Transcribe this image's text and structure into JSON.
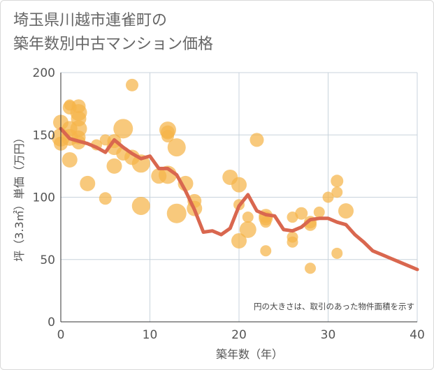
{
  "title_line1": "埼玉県川越市連雀町の",
  "title_line2": "築年数別中古マンション価格",
  "colors": {
    "bubble": "#f5b449",
    "line": "#d9674f",
    "grid": "#c8d3dc",
    "axis": "#333333"
  },
  "chart_data": {
    "type": "scatter",
    "xlabel": "築年数（年）",
    "ylabel": "坪（3.3㎡）単価（万円）",
    "xlim": [
      0,
      40
    ],
    "ylim": [
      0,
      200
    ],
    "xticks": [
      0,
      10,
      20,
      30,
      40
    ],
    "yticks": [
      0,
      50,
      100,
      150,
      200
    ],
    "note": "円の大きさは、取引のあった物件面積を示す",
    "bubbles": [
      {
        "x": 0,
        "y": 160,
        "s": 11
      },
      {
        "x": 0,
        "y": 148,
        "s": 13
      },
      {
        "x": 0,
        "y": 143,
        "s": 10
      },
      {
        "x": 1,
        "y": 172,
        "s": 10
      },
      {
        "x": 1,
        "y": 174,
        "s": 8
      },
      {
        "x": 1,
        "y": 155,
        "s": 11
      },
      {
        "x": 1,
        "y": 148,
        "s": 12
      },
      {
        "x": 1,
        "y": 130,
        "s": 11
      },
      {
        "x": 2,
        "y": 173,
        "s": 10
      },
      {
        "x": 2,
        "y": 168,
        "s": 12
      },
      {
        "x": 2,
        "y": 163,
        "s": 11
      },
      {
        "x": 2,
        "y": 155,
        "s": 12
      },
      {
        "x": 2,
        "y": 148,
        "s": 10
      },
      {
        "x": 2,
        "y": 144,
        "s": 10
      },
      {
        "x": 3,
        "y": 111,
        "s": 11
      },
      {
        "x": 4,
        "y": 142,
        "s": 8
      },
      {
        "x": 5,
        "y": 146,
        "s": 8
      },
      {
        "x": 5,
        "y": 99,
        "s": 9
      },
      {
        "x": 6,
        "y": 145,
        "s": 10
      },
      {
        "x": 6,
        "y": 140,
        "s": 11
      },
      {
        "x": 6,
        "y": 125,
        "s": 11
      },
      {
        "x": 7,
        "y": 155,
        "s": 14
      },
      {
        "x": 7,
        "y": 135,
        "s": 10
      },
      {
        "x": 8,
        "y": 190,
        "s": 9
      },
      {
        "x": 8,
        "y": 132,
        "s": 11
      },
      {
        "x": 9,
        "y": 127,
        "s": 13
      },
      {
        "x": 9,
        "y": 93,
        "s": 13
      },
      {
        "x": 12,
        "y": 154,
        "s": 12
      },
      {
        "x": 12,
        "y": 152,
        "s": 10
      },
      {
        "x": 12,
        "y": 149,
        "s": 9
      },
      {
        "x": 12,
        "y": 118,
        "s": 13
      },
      {
        "x": 11,
        "y": 117,
        "s": 11
      },
      {
        "x": 13,
        "y": 140,
        "s": 13
      },
      {
        "x": 13,
        "y": 87,
        "s": 14
      },
      {
        "x": 14,
        "y": 111,
        "s": 11
      },
      {
        "x": 15,
        "y": 97,
        "s": 10
      },
      {
        "x": 15,
        "y": 91,
        "s": 11
      },
      {
        "x": 19,
        "y": 116,
        "s": 11
      },
      {
        "x": 20,
        "y": 110,
        "s": 11
      },
      {
        "x": 20,
        "y": 94,
        "s": 8
      },
      {
        "x": 20,
        "y": 65,
        "s": 11
      },
      {
        "x": 21,
        "y": 84,
        "s": 8
      },
      {
        "x": 21,
        "y": 74,
        "s": 12
      },
      {
        "x": 22,
        "y": 146,
        "s": 10
      },
      {
        "x": 23,
        "y": 85,
        "s": 10
      },
      {
        "x": 23,
        "y": 83,
        "s": 10
      },
      {
        "x": 23,
        "y": 80,
        "s": 8
      },
      {
        "x": 23,
        "y": 57,
        "s": 8
      },
      {
        "x": 26,
        "y": 84,
        "s": 8
      },
      {
        "x": 26,
        "y": 68,
        "s": 8
      },
      {
        "x": 26,
        "y": 64,
        "s": 8
      },
      {
        "x": 27,
        "y": 87,
        "s": 9
      },
      {
        "x": 28,
        "y": 80,
        "s": 9
      },
      {
        "x": 28,
        "y": 78,
        "s": 9
      },
      {
        "x": 28,
        "y": 43,
        "s": 8
      },
      {
        "x": 29,
        "y": 88,
        "s": 8
      },
      {
        "x": 30,
        "y": 100,
        "s": 8
      },
      {
        "x": 31,
        "y": 113,
        "s": 9
      },
      {
        "x": 31,
        "y": 104,
        "s": 8
      },
      {
        "x": 31,
        "y": 55,
        "s": 8
      },
      {
        "x": 32,
        "y": 89,
        "s": 11
      }
    ],
    "line": {
      "x": [
        0,
        1,
        2,
        3,
        4,
        5,
        6,
        7,
        8,
        9,
        10,
        11,
        12,
        13,
        14,
        15,
        16,
        17,
        18,
        19,
        20,
        21,
        22,
        23,
        24,
        25,
        26,
        27,
        28,
        29,
        30,
        31,
        32,
        33,
        34,
        35,
        36,
        37,
        38,
        39,
        40
      ],
      "y": [
        155,
        147,
        145,
        143,
        140,
        136,
        146,
        140,
        135,
        131,
        133,
        123,
        123,
        118,
        105,
        90,
        72,
        73,
        70,
        75,
        93,
        102,
        89,
        86,
        85,
        74,
        73,
        76,
        82,
        83,
        83,
        80,
        78,
        70,
        64,
        57,
        54,
        51,
        48,
        45,
        42
      ]
    }
  }
}
